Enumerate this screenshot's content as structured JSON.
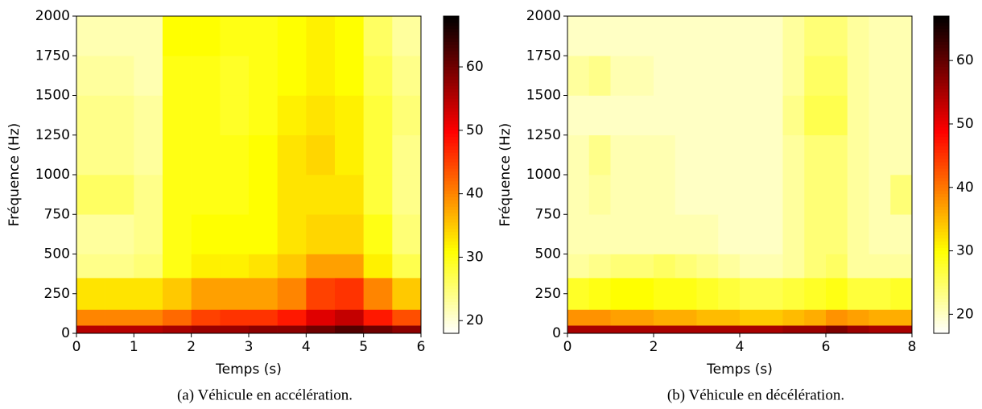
{
  "chart_data": [
    {
      "type": "heatmap",
      "caption": "(a) Véhicule en accélération.",
      "xlabel": "Temps (s)",
      "ylabel": "Fréquence (Hz)",
      "colormap": "hot_r",
      "xlim": [
        0,
        6
      ],
      "xticks": [
        0,
        1,
        2,
        3,
        4,
        5,
        6
      ],
      "ylim": [
        0,
        2000
      ],
      "yticks": [
        0,
        250,
        500,
        750,
        1000,
        1250,
        1500,
        1750,
        2000
      ],
      "x_edges": [
        0,
        0.5,
        1,
        1.5,
        2,
        2.5,
        3,
        3.5,
        4,
        4.5,
        5,
        5.5,
        6
      ],
      "y_edges": [
        0,
        50,
        150,
        350,
        500,
        750,
        1000,
        1250,
        1500,
        1750,
        2000
      ],
      "values": [
        [
          55,
          55,
          55,
          56,
          57,
          57,
          58,
          58,
          60,
          62,
          60,
          58
        ],
        [
          40,
          40,
          40,
          42,
          45,
          46,
          46,
          48,
          52,
          54,
          48,
          44
        ],
        [
          33,
          33,
          33,
          35,
          38,
          38,
          38,
          40,
          45,
          46,
          40,
          35
        ],
        [
          24,
          24,
          25,
          30,
          32,
          32,
          33,
          35,
          38,
          38,
          32,
          27
        ],
        [
          23,
          23,
          24,
          30,
          31,
          31,
          31,
          33,
          34,
          34,
          30,
          25
        ],
        [
          26,
          26,
          24,
          30,
          30,
          30,
          31,
          33,
          33,
          33,
          28,
          24
        ],
        [
          24,
          24,
          23,
          30,
          30,
          30,
          31,
          33,
          34,
          32,
          28,
          24
        ],
        [
          24,
          24,
          23,
          30,
          30,
          29,
          30,
          32,
          33,
          32,
          28,
          25
        ],
        [
          23,
          23,
          22,
          30,
          30,
          29,
          30,
          31,
          32,
          31,
          27,
          24
        ],
        [
          22,
          22,
          22,
          31,
          31,
          30,
          30,
          31,
          32,
          31,
          26,
          23
        ]
      ],
      "zlim": [
        18,
        68
      ],
      "zticks": [
        20,
        30,
        40,
        50,
        60
      ]
    },
    {
      "type": "heatmap",
      "caption": "(b) Véhicule en décélération.",
      "xlabel": "Temps (s)",
      "ylabel": "Fréquence (Hz)",
      "colormap": "hot_r",
      "xlim": [
        0,
        8
      ],
      "xticks": [
        0,
        2,
        4,
        6,
        8
      ],
      "ylim": [
        0,
        2000
      ],
      "yticks": [
        0,
        250,
        500,
        750,
        1000,
        1250,
        1500,
        1750,
        2000
      ],
      "x_edges": [
        0,
        0.5,
        1,
        1.5,
        2,
        2.5,
        3,
        3.5,
        4,
        4.5,
        5,
        5.5,
        6,
        6.5,
        7,
        7.5,
        8
      ],
      "y_edges": [
        0,
        50,
        150,
        350,
        500,
        750,
        1000,
        1250,
        1500,
        1750,
        2000
      ],
      "values": [
        [
          55,
          55,
          55,
          55,
          55,
          55,
          55,
          55,
          55,
          55,
          56,
          56,
          58,
          56,
          55,
          55
        ],
        [
          38,
          38,
          37,
          37,
          36,
          36,
          35,
          35,
          34,
          34,
          35,
          36,
          38,
          37,
          36,
          36
        ],
        [
          28,
          29,
          30,
          30,
          29,
          29,
          28,
          27,
          26,
          26,
          27,
          28,
          29,
          27,
          27,
          28
        ],
        [
          22,
          23,
          24,
          24,
          25,
          24,
          23,
          22,
          21,
          21,
          22,
          24,
          25,
          22,
          22,
          22
        ],
        [
          21,
          21,
          21,
          21,
          21,
          21,
          21,
          20,
          20,
          20,
          22,
          24,
          24,
          22,
          21,
          21
        ],
        [
          21,
          22,
          21,
          21,
          21,
          20,
          20,
          20,
          20,
          20,
          22,
          24,
          24,
          22,
          21,
          24
        ],
        [
          21,
          23,
          21,
          21,
          21,
          20,
          20,
          20,
          20,
          20,
          22,
          24,
          24,
          22,
          21,
          21
        ],
        [
          20,
          20,
          20,
          20,
          20,
          20,
          20,
          20,
          20,
          20,
          23,
          26,
          26,
          22,
          21,
          21
        ],
        [
          22,
          23,
          21,
          21,
          20,
          20,
          20,
          20,
          20,
          20,
          22,
          25,
          25,
          22,
          21,
          21
        ],
        [
          20,
          20,
          20,
          20,
          20,
          20,
          20,
          20,
          20,
          20,
          22,
          24,
          24,
          22,
          21,
          21
        ]
      ],
      "zlim": [
        17,
        67
      ],
      "zticks": [
        20,
        30,
        40,
        50,
        60
      ]
    }
  ]
}
